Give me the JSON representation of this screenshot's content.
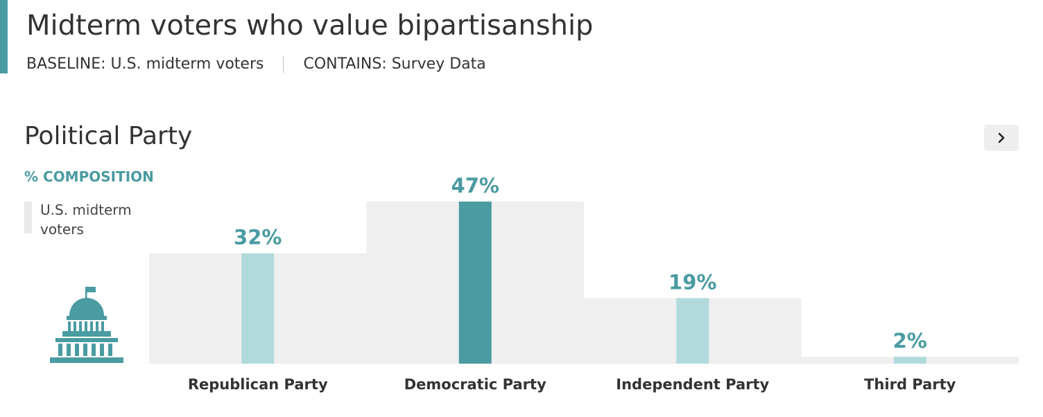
{
  "header": {
    "title": "Midterm voters who value bipartisanship",
    "baseline": "BASELINE: U.S. midterm voters",
    "contains": "CONTAINS: Survey Data"
  },
  "section": {
    "title": "Political Party",
    "measure_label": "% COMPOSITION",
    "next_icon": "chevron-right-icon"
  },
  "legend": {
    "label": "U.S. midterm voters"
  },
  "icons": {
    "segment_icon": "capitol-building-icon"
  },
  "colors": {
    "accent": "#4a9ba2",
    "highlight_bar": "#4a9ba2",
    "bar": "#b1dadc",
    "baseline_block": "#efefef"
  },
  "chart_data": {
    "type": "bar",
    "categories": [
      "Republican Party",
      "Democratic Party",
      "Independent Party",
      "Third Party"
    ],
    "values": [
      32,
      47,
      19,
      2
    ],
    "value_labels": [
      "32%",
      "47%",
      "19%",
      "2%"
    ],
    "baseline_values": [
      32,
      47,
      19,
      2
    ],
    "highlight_index": 1,
    "ylim": [
      0,
      47
    ],
    "grid": false
  }
}
